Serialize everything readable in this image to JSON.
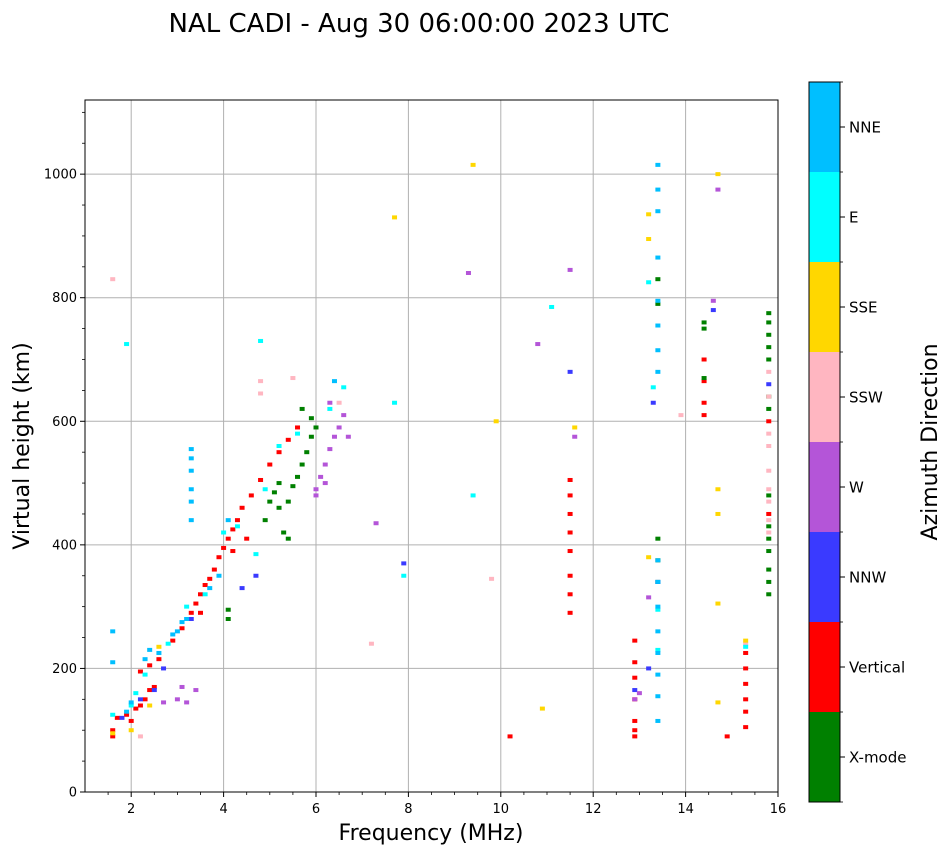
{
  "chart_data": {
    "type": "scatter",
    "title": "NAL CADI - Aug 30 06:00:00 2023 UTC",
    "xlabel": "Frequency (MHz)",
    "ylabel": "Virtual height (km)",
    "xlim": [
      1,
      16
    ],
    "ylim": [
      0,
      1120
    ],
    "xticks": [
      2,
      4,
      6,
      8,
      10,
      12,
      14,
      16
    ],
    "yticks": [
      0,
      200,
      400,
      600,
      800,
      1000
    ],
    "grid": true,
    "colorbar": {
      "title": "Azimuth Direction",
      "categories": [
        {
          "name": "X-mode",
          "color": "#008000"
        },
        {
          "name": "Vertical",
          "color": "#ff0000"
        },
        {
          "name": "NNW",
          "color": "#3a3aff"
        },
        {
          "name": "W",
          "color": "#b455d8"
        },
        {
          "name": "SSW",
          "color": "#ffb6c1"
        },
        {
          "name": "SSE",
          "color": "#ffd700"
        },
        {
          "name": "E",
          "color": "#00ffff"
        },
        {
          "name": "NNE",
          "color": "#00bfff"
        }
      ]
    },
    "series": [
      {
        "name": "Vertical",
        "points": [
          [
            1.6,
            90
          ],
          [
            1.6,
            100
          ],
          [
            1.7,
            120
          ],
          [
            1.9,
            125
          ],
          [
            2.0,
            115
          ],
          [
            2.1,
            135
          ],
          [
            2.2,
            140
          ],
          [
            2.3,
            150
          ],
          [
            2.4,
            165
          ],
          [
            2.5,
            170
          ],
          [
            2.2,
            195
          ],
          [
            2.4,
            205
          ],
          [
            2.6,
            215
          ],
          [
            2.9,
            245
          ],
          [
            3.1,
            265
          ],
          [
            3.3,
            290
          ],
          [
            3.4,
            305
          ],
          [
            3.5,
            320
          ],
          [
            3.6,
            335
          ],
          [
            3.8,
            360
          ],
          [
            3.9,
            380
          ],
          [
            4.0,
            395
          ],
          [
            4.1,
            410
          ],
          [
            4.2,
            425
          ],
          [
            4.3,
            440
          ],
          [
            4.4,
            460
          ],
          [
            4.6,
            480
          ],
          [
            4.8,
            505
          ],
          [
            5.0,
            530
          ],
          [
            5.2,
            550
          ],
          [
            5.4,
            570
          ],
          [
            5.6,
            590
          ],
          [
            3.5,
            290
          ],
          [
            3.7,
            345
          ],
          [
            4.2,
            390
          ],
          [
            4.5,
            410
          ],
          [
            10.2,
            90
          ],
          [
            11.5,
            290
          ],
          [
            11.5,
            320
          ],
          [
            11.5,
            350
          ],
          [
            11.5,
            390
          ],
          [
            11.5,
            420
          ],
          [
            11.5,
            450
          ],
          [
            11.5,
            480
          ],
          [
            11.5,
            505
          ],
          [
            12.9,
            90
          ],
          [
            12.9,
            100
          ],
          [
            12.9,
            115
          ],
          [
            12.9,
            150
          ],
          [
            12.9,
            185
          ],
          [
            12.9,
            210
          ],
          [
            12.9,
            245
          ],
          [
            14.4,
            610
          ],
          [
            14.4,
            630
          ],
          [
            14.4,
            665
          ],
          [
            14.4,
            700
          ],
          [
            15.3,
            105
          ],
          [
            15.3,
            130
          ],
          [
            15.3,
            150
          ],
          [
            15.3,
            175
          ],
          [
            15.3,
            200
          ],
          [
            15.3,
            225
          ],
          [
            14.9,
            90
          ],
          [
            15.8,
            450
          ],
          [
            15.8,
            600
          ]
        ]
      },
      {
        "name": "X-mode",
        "points": [
          [
            4.1,
            280
          ],
          [
            4.1,
            295
          ],
          [
            4.9,
            440
          ],
          [
            5.0,
            470
          ],
          [
            5.1,
            485
          ],
          [
            5.2,
            460
          ],
          [
            5.4,
            470
          ],
          [
            5.5,
            495
          ],
          [
            5.6,
            510
          ],
          [
            5.7,
            530
          ],
          [
            5.8,
            550
          ],
          [
            5.9,
            575
          ],
          [
            6.0,
            590
          ],
          [
            5.3,
            420
          ],
          [
            5.4,
            410
          ],
          [
            5.9,
            605
          ],
          [
            5.7,
            620
          ],
          [
            5.2,
            500
          ],
          [
            13.4,
            340
          ],
          [
            13.4,
            375
          ],
          [
            13.4,
            410
          ],
          [
            13.4,
            790
          ],
          [
            13.4,
            830
          ],
          [
            14.4,
            670
          ],
          [
            14.4,
            750
          ],
          [
            14.4,
            760
          ],
          [
            15.8,
            320
          ],
          [
            15.8,
            340
          ],
          [
            15.8,
            360
          ],
          [
            15.8,
            390
          ],
          [
            15.8,
            410
          ],
          [
            15.8,
            430
          ],
          [
            15.8,
            480
          ],
          [
            15.8,
            620
          ],
          [
            15.8,
            640
          ],
          [
            15.8,
            700
          ],
          [
            15.8,
            720
          ],
          [
            15.8,
            740
          ],
          [
            15.8,
            760
          ],
          [
            15.8,
            775
          ]
        ]
      },
      {
        "name": "NNW",
        "points": [
          [
            1.8,
            120
          ],
          [
            2.2,
            150
          ],
          [
            2.5,
            165
          ],
          [
            2.7,
            200
          ],
          [
            3.3,
            280
          ],
          [
            4.4,
            330
          ],
          [
            4.7,
            350
          ],
          [
            7.9,
            370
          ],
          [
            11.5,
            680
          ],
          [
            13.3,
            630
          ],
          [
            14.6,
            780
          ],
          [
            13.2,
            200
          ],
          [
            12.9,
            165
          ],
          [
            13.4,
            340
          ],
          [
            15.8,
            660
          ]
        ]
      },
      {
        "name": "W",
        "points": [
          [
            2.7,
            145
          ],
          [
            3.0,
            150
          ],
          [
            3.1,
            170
          ],
          [
            3.4,
            165
          ],
          [
            3.2,
            145
          ],
          [
            6.0,
            490
          ],
          [
            6.1,
            510
          ],
          [
            6.2,
            530
          ],
          [
            6.3,
            555
          ],
          [
            6.4,
            575
          ],
          [
            6.5,
            590
          ],
          [
            6.6,
            610
          ],
          [
            6.3,
            630
          ],
          [
            6.7,
            575
          ],
          [
            6.2,
            500
          ],
          [
            6.0,
            480
          ],
          [
            7.3,
            435
          ],
          [
            9.3,
            840
          ],
          [
            10.8,
            725
          ],
          [
            11.5,
            845
          ],
          [
            11.6,
            575
          ],
          [
            13.2,
            315
          ],
          [
            14.6,
            795
          ],
          [
            14.7,
            975
          ],
          [
            12.9,
            150
          ],
          [
            13.0,
            160
          ]
        ]
      },
      {
        "name": "SSW",
        "points": [
          [
            1.6,
            830
          ],
          [
            4.8,
            665
          ],
          [
            4.8,
            645
          ],
          [
            5.5,
            670
          ],
          [
            6.5,
            630
          ],
          [
            7.2,
            240
          ],
          [
            9.8,
            345
          ],
          [
            13.9,
            610
          ],
          [
            15.8,
            420
          ],
          [
            15.8,
            440
          ],
          [
            15.8,
            470
          ],
          [
            15.8,
            490
          ],
          [
            15.8,
            520
          ],
          [
            15.8,
            560
          ],
          [
            15.8,
            580
          ],
          [
            15.8,
            640
          ],
          [
            15.8,
            680
          ],
          [
            15.3,
            240
          ],
          [
            2.2,
            90
          ]
        ]
      },
      {
        "name": "SSE",
        "points": [
          [
            1.6,
            95
          ],
          [
            2.0,
            100
          ],
          [
            2.4,
            140
          ],
          [
            2.6,
            235
          ],
          [
            7.7,
            930
          ],
          [
            9.4,
            1015
          ],
          [
            9.9,
            600
          ],
          [
            10.9,
            135
          ],
          [
            11.6,
            590
          ],
          [
            13.2,
            380
          ],
          [
            13.2,
            895
          ],
          [
            13.2,
            935
          ],
          [
            14.7,
            1000
          ],
          [
            14.7,
            490
          ],
          [
            14.7,
            450
          ],
          [
            14.7,
            305
          ],
          [
            14.7,
            145
          ],
          [
            15.3,
            245
          ]
        ]
      },
      {
        "name": "E",
        "points": [
          [
            1.6,
            125
          ],
          [
            2.0,
            140
          ],
          [
            2.1,
            160
          ],
          [
            2.3,
            190
          ],
          [
            2.8,
            240
          ],
          [
            3.2,
            300
          ],
          [
            3.6,
            320
          ],
          [
            4.0,
            420
          ],
          [
            4.3,
            430
          ],
          [
            4.7,
            385
          ],
          [
            4.9,
            490
          ],
          [
            5.2,
            560
          ],
          [
            5.6,
            580
          ],
          [
            6.3,
            620
          ],
          [
            6.6,
            655
          ],
          [
            4.8,
            730
          ],
          [
            7.7,
            630
          ],
          [
            7.9,
            350
          ],
          [
            9.4,
            480
          ],
          [
            11.1,
            785
          ],
          [
            13.2,
            825
          ],
          [
            13.3,
            655
          ],
          [
            13.4,
            295
          ],
          [
            13.4,
            230
          ],
          [
            15.3,
            235
          ],
          [
            1.9,
            725
          ]
        ]
      },
      {
        "name": "NNE",
        "points": [
          [
            1.6,
            210
          ],
          [
            1.6,
            260
          ],
          [
            1.9,
            130
          ],
          [
            2.0,
            145
          ],
          [
            2.3,
            215
          ],
          [
            2.4,
            230
          ],
          [
            2.6,
            225
          ],
          [
            2.9,
            255
          ],
          [
            3.0,
            260
          ],
          [
            3.1,
            275
          ],
          [
            3.2,
            280
          ],
          [
            3.3,
            440
          ],
          [
            3.3,
            470
          ],
          [
            3.3,
            490
          ],
          [
            3.3,
            520
          ],
          [
            3.3,
            540
          ],
          [
            3.3,
            555
          ],
          [
            3.7,
            330
          ],
          [
            3.9,
            350
          ],
          [
            4.1,
            440
          ],
          [
            6.4,
            665
          ],
          [
            13.4,
            115
          ],
          [
            13.4,
            155
          ],
          [
            13.4,
            190
          ],
          [
            13.4,
            225
          ],
          [
            13.4,
            260
          ],
          [
            13.4,
            300
          ],
          [
            13.4,
            340
          ],
          [
            13.4,
            375
          ],
          [
            13.4,
            680
          ],
          [
            13.4,
            715
          ],
          [
            13.4,
            755
          ],
          [
            13.4,
            795
          ],
          [
            13.4,
            865
          ],
          [
            13.4,
            940
          ],
          [
            13.4,
            975
          ],
          [
            13.4,
            1015
          ]
        ]
      }
    ]
  }
}
